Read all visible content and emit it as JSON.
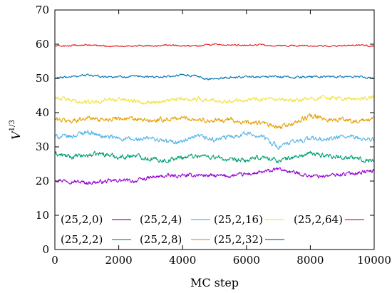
{
  "chart_data": {
    "type": "line",
    "xlabel": "MC step",
    "ylabel": "V",
    "ylabel_exponent": "1/3",
    "xlim": [
      0,
      10000
    ],
    "ylim": [
      0,
      70
    ],
    "xticks": [
      0,
      2000,
      4000,
      6000,
      8000,
      10000
    ],
    "yticks": [
      0,
      10,
      20,
      30,
      40,
      50,
      60,
      70
    ],
    "grid": false,
    "legend_position": "bottom",
    "series": [
      {
        "name": "(25,2,0)",
        "color": "#9400d3",
        "x": [
          0,
          500,
          1000,
          1500,
          2000,
          2500,
          3000,
          3500,
          4000,
          4500,
          5000,
          5500,
          6000,
          6500,
          7000,
          7500,
          8000,
          8500,
          9000,
          9500,
          10000
        ],
        "y": [
          20.5,
          20,
          19.5,
          19.8,
          20.2,
          20,
          21,
          21.5,
          21.5,
          21.8,
          21.5,
          21.5,
          22,
          22.5,
          23.5,
          22.5,
          21.5,
          21.5,
          22,
          22.5,
          23
        ]
      },
      {
        "name": "(25,2,2)",
        "color": "#009e73",
        "x": [
          0,
          500,
          1000,
          1500,
          2000,
          2500,
          3000,
          3500,
          4000,
          4500,
          5000,
          5500,
          6000,
          6500,
          7000,
          7500,
          8000,
          8500,
          9000,
          9500,
          10000
        ],
        "y": [
          28,
          27,
          27.5,
          28,
          27,
          27.5,
          26.5,
          26,
          27,
          27.5,
          27,
          26,
          26,
          27,
          26,
          27,
          28,
          27.5,
          27,
          26.5,
          26
        ]
      },
      {
        "name": "(25,2,4)",
        "color": "#56b4e9",
        "x": [
          0,
          500,
          1000,
          1500,
          2000,
          2500,
          3000,
          3500,
          4000,
          4500,
          5000,
          5500,
          6000,
          6500,
          7000,
          7500,
          8000,
          8500,
          9000,
          9500,
          10000
        ],
        "y": [
          33,
          33,
          34.5,
          33,
          32.5,
          32,
          32.5,
          31.5,
          31.5,
          33,
          32,
          33,
          34,
          33,
          30,
          31.5,
          32.5,
          32,
          33,
          32.5,
          32
        ]
      },
      {
        "name": "(25,2,8)",
        "color": "#e69f00",
        "x": [
          0,
          500,
          1000,
          1500,
          2000,
          2500,
          3000,
          3500,
          4000,
          4500,
          5000,
          5500,
          6000,
          6500,
          7000,
          7500,
          8000,
          8500,
          9000,
          9500,
          10000
        ],
        "y": [
          38,
          37.5,
          38.5,
          38,
          38.5,
          38,
          37.5,
          38,
          38.5,
          38,
          37.5,
          38,
          37,
          37,
          35.5,
          37,
          39,
          38,
          38,
          37.5,
          38
        ]
      },
      {
        "name": "(25,2,16)",
        "color": "#f0e442",
        "x": [
          0,
          500,
          1000,
          1500,
          2000,
          2500,
          3000,
          3500,
          4000,
          4500,
          5000,
          5500,
          6000,
          6500,
          7000,
          7500,
          8000,
          8500,
          9000,
          9500,
          10000
        ],
        "y": [
          44.5,
          43.5,
          43,
          43.5,
          44,
          43.5,
          43,
          43.5,
          44,
          44,
          43.5,
          43.5,
          44,
          44,
          43.5,
          43.5,
          44,
          44.5,
          44,
          44,
          44.5
        ]
      },
      {
        "name": "(25,2,32)",
        "color": "#0072b2",
        "x": [
          0,
          500,
          1000,
          1500,
          2000,
          2500,
          3000,
          3500,
          4000,
          4500,
          4700,
          5000,
          5500,
          6000,
          6500,
          7000,
          7500,
          8000,
          8500,
          9000,
          9500,
          10000
        ],
        "y": [
          50,
          50.5,
          51,
          50.5,
          50.5,
          50.5,
          50.5,
          50.5,
          51,
          50.5,
          49.8,
          50,
          50.3,
          50.5,
          50.5,
          50.5,
          50.3,
          50.5,
          50.5,
          50.5,
          50.5,
          50
        ]
      },
      {
        "name": "(25,2,64)",
        "color": "#e41a1c",
        "x": [
          0,
          500,
          1000,
          1500,
          2000,
          2500,
          3000,
          3500,
          4000,
          4500,
          5000,
          5500,
          6000,
          6500,
          6800,
          7000,
          7500,
          8000,
          8500,
          9000,
          9500,
          10000
        ],
        "y": [
          59.5,
          59.5,
          59.8,
          59.5,
          59.5,
          59.5,
          59.5,
          59.7,
          59.5,
          59.5,
          59.9,
          59.7,
          59.8,
          59.8,
          59.4,
          59.5,
          59.6,
          59.5,
          59.5,
          59.5,
          59.6,
          59.5
        ]
      }
    ]
  }
}
